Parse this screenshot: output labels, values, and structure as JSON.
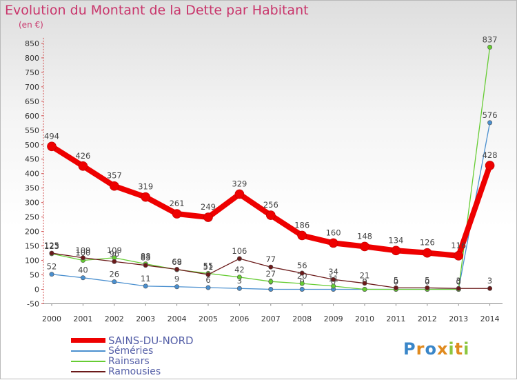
{
  "title": "Evolution du Montant de la Dette par Habitant",
  "subtitle": "(en €)",
  "logo": "Proxiti",
  "chart_data": {
    "type": "line",
    "title": "Evolution du Montant de la Dette par Habitant",
    "ylabel": "(en €)",
    "xlabel": "",
    "ylim": [
      -50,
      850
    ],
    "yticks": [
      -50,
      0,
      50,
      100,
      150,
      200,
      250,
      300,
      350,
      400,
      450,
      500,
      550,
      600,
      650,
      700,
      750,
      800,
      850
    ],
    "x": [
      "2000",
      "2001",
      "2002",
      "2003",
      "2004",
      "2005",
      "2006",
      "2007",
      "2008",
      "2009",
      "2010",
      "2011",
      "2012",
      "2013",
      "2014"
    ],
    "grid": false,
    "legend_position": "bottom-left",
    "series": [
      {
        "name": "SAINS-DU-NORD",
        "color": "#ee0000",
        "width": 8,
        "values": [
          494,
          426,
          357,
          319,
          261,
          249,
          329,
          256,
          186,
          160,
          148,
          134,
          126,
          116,
          428
        ]
      },
      {
        "name": "Séméries",
        "color": "#4a8fcf",
        "width": 1.3,
        "values": [
          52,
          40,
          26,
          11,
          9,
          6,
          3,
          0,
          0,
          0,
          0,
          0,
          0,
          0,
          576
        ]
      },
      {
        "name": "Rainsars",
        "color": "#66cc33",
        "width": 1.3,
        "values": [
          123,
          100,
          109,
          88,
          68,
          55,
          42,
          27,
          20,
          11,
          0,
          0,
          0,
          0,
          837
        ]
      },
      {
        "name": "Ramousies",
        "color": "#6b1a1a",
        "width": 1.3,
        "values": [
          125,
          109,
          96,
          83,
          69,
          51,
          106,
          77,
          56,
          34,
          21,
          5,
          5,
          3,
          3
        ]
      }
    ]
  }
}
